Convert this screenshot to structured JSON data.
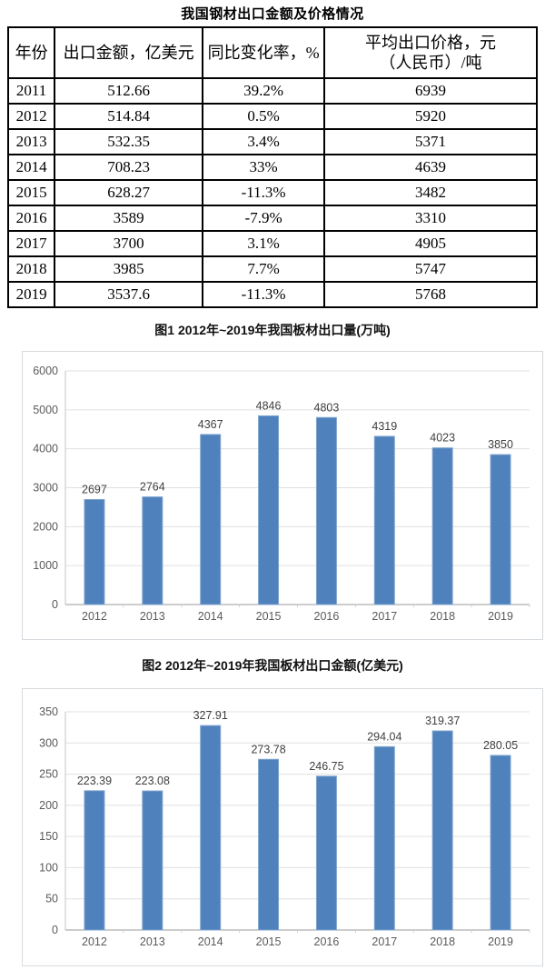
{
  "doc": {
    "table_title": "我国钢材出口金额及价格情况"
  },
  "table": {
    "headers": [
      {
        "label": "年份"
      },
      {
        "label": "出口金额，亿美元"
      },
      {
        "label": "同比变化率，%"
      },
      {
        "label": "平均出口价格，元",
        "label2": "（人民币）/吨"
      }
    ],
    "rows": [
      [
        "2011",
        "512.66",
        "39.2%",
        "6939"
      ],
      [
        "2012",
        "514.84",
        "0.5%",
        "5920"
      ],
      [
        "2013",
        "532.35",
        "3.4%",
        "5371"
      ],
      [
        "2014",
        "708.23",
        "33%",
        "4639"
      ],
      [
        "2015",
        "628.27",
        "-11.3%",
        "3482"
      ],
      [
        "2016",
        "3589",
        "-7.9%",
        "3310"
      ],
      [
        "2017",
        "3700",
        "3.1%",
        "4905"
      ],
      [
        "2018",
        "3985",
        "7.7%",
        "5747"
      ],
      [
        "2019",
        "3537.6",
        "-11.3%",
        "5768"
      ]
    ]
  },
  "chart_data": [
    {
      "type": "bar",
      "title": "图1 2012年~2019年我国板材出口量(万吨)",
      "categories": [
        "2012",
        "2013",
        "2014",
        "2015",
        "2016",
        "2017",
        "2018",
        "2019"
      ],
      "values": [
        2697,
        2764,
        4367,
        4846,
        4803,
        4319,
        4023,
        3850
      ],
      "xlabel": "",
      "ylabel": "",
      "ylim": [
        0,
        6000
      ],
      "ytick_step": 1000,
      "grid": true,
      "data_labels": true,
      "legend": "none",
      "bar_color": "#4F81BD",
      "bar_stroke": "#7FA4CD",
      "grid_color": "#e0e0e0",
      "axis_color": "#9b9b9b",
      "tick_label_color": "#5a5a5a",
      "data_label_color": "#3f3f3f"
    },
    {
      "type": "bar",
      "title": "图2 2012年~2019年我国板材出口金额(亿美元)",
      "categories": [
        "2012",
        "2013",
        "2014",
        "2015",
        "2016",
        "2017",
        "2018",
        "2019"
      ],
      "values": [
        223.39,
        223.08,
        327.91,
        273.78,
        246.75,
        294.04,
        319.37,
        280.05
      ],
      "xlabel": "",
      "ylabel": "",
      "ylim": [
        0,
        350
      ],
      "ytick_step": 50,
      "grid": true,
      "data_labels": true,
      "legend": "none",
      "bar_color": "#4F81BD",
      "bar_stroke": "#7FA4CD",
      "grid_color": "#e0e0e0",
      "axis_color": "#9b9b9b",
      "tick_label_color": "#5a5a5a",
      "data_label_color": "#3f3f3f"
    }
  ]
}
